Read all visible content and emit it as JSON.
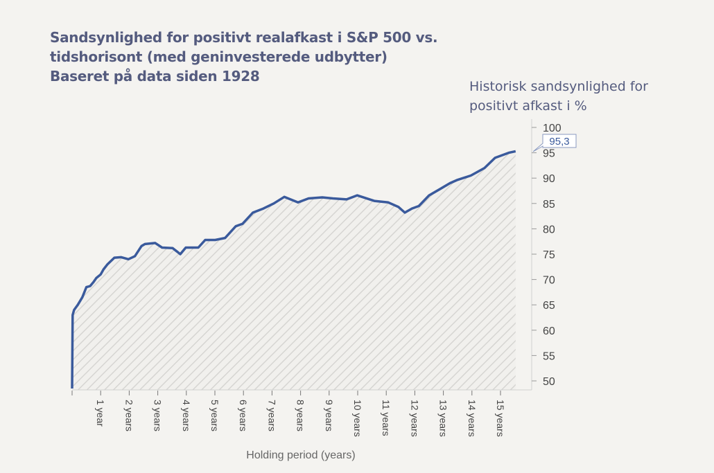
{
  "chart_data": {
    "type": "area",
    "title": [
      "Sandsynlighed for positivt realafkast i S&P 500 vs.",
      "tidshorisont (med geninvesterede udbytter)",
      "Baseret på data siden 1928"
    ],
    "ylabel": [
      "Historisk sandsynlighed for",
      "positivt afkast i %"
    ],
    "xlabel": "Holding period (years)",
    "ylim": [
      48.5,
      102
    ],
    "xlim": [
      0,
      16
    ],
    "yticks": [
      50,
      55,
      60,
      65,
      70,
      75,
      80,
      85,
      90,
      95,
      100
    ],
    "xticks": [
      0,
      1,
      2,
      3,
      4,
      5,
      6,
      7,
      8,
      9,
      10,
      11,
      12,
      13,
      14,
      15
    ],
    "xtick_labels": [
      "",
      "1 year",
      "2 years",
      "3 years",
      "4 years",
      "5 years",
      "6 years",
      "7 years",
      "8 years",
      "9 years",
      "10 years",
      "11 years",
      "12 years",
      "13 years",
      "14 years",
      "15 years"
    ],
    "annotation": "95,3",
    "line_color": "#3a5a9c",
    "x": [
      0.0,
      0.02,
      0.07,
      0.2,
      0.36,
      0.5,
      0.63,
      0.75,
      0.85,
      1.0,
      1.1,
      1.24,
      1.48,
      1.72,
      1.97,
      2.2,
      2.43,
      2.55,
      2.91,
      3.15,
      3.52,
      3.79,
      3.98,
      4.42,
      4.66,
      5.01,
      5.36,
      5.73,
      5.97,
      6.33,
      6.7,
      7.06,
      7.43,
      7.91,
      8.28,
      8.76,
      9.13,
      9.61,
      9.98,
      10.58,
      11.07,
      11.43,
      11.65,
      11.9,
      12.14,
      12.5,
      12.87,
      13.23,
      13.47,
      13.96,
      14.44,
      14.81,
      15.29,
      15.53
    ],
    "values": [
      48.5,
      63.0,
      64.0,
      65.0,
      66.5,
      68.5,
      68.7,
      69.5,
      70.3,
      71.0,
      72.0,
      73.0,
      74.3,
      74.4,
      74.0,
      74.6,
      76.6,
      77.0,
      77.2,
      76.3,
      76.2,
      75.0,
      76.3,
      76.3,
      77.8,
      77.8,
      78.2,
      80.5,
      81.0,
      83.2,
      84.0,
      85.0,
      86.3,
      85.2,
      86.0,
      86.2,
      86.0,
      85.8,
      86.6,
      85.5,
      85.2,
      84.3,
      83.2,
      84.0,
      84.5,
      86.6,
      87.8,
      89.0,
      89.6,
      90.5,
      92.0,
      94.0,
      95.0,
      95.3
    ]
  }
}
